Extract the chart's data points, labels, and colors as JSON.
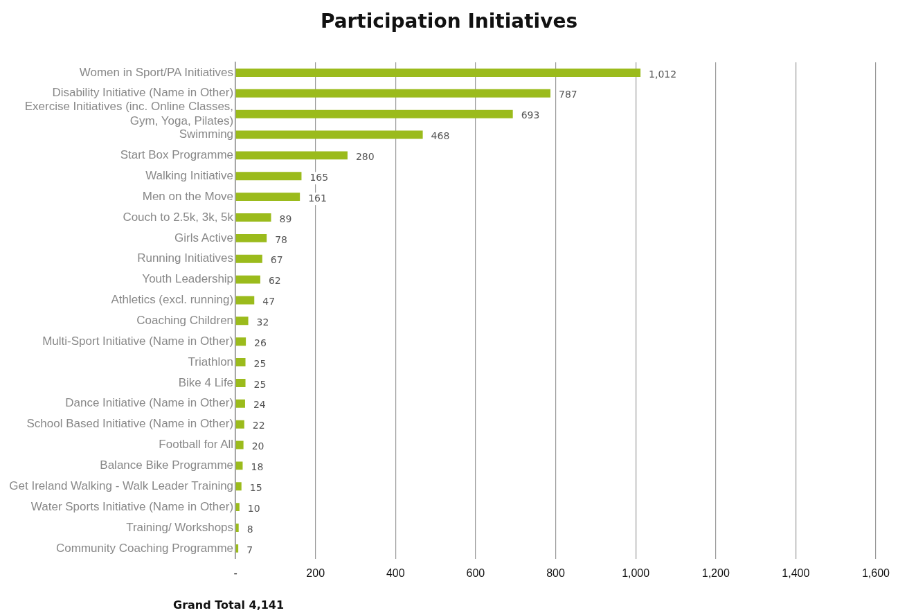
{
  "chart_data": {
    "type": "bar",
    "orientation": "horizontal",
    "title": "Participation Initiatives",
    "categories": [
      "Women in Sport/PA Initiatives",
      "Disability Initiative (Name in Other)",
      "Exercise Initiatives (inc. Online Classes, Gym, Yoga, Pilates)",
      "Swimming",
      "Start Box Programme",
      "Walking Initiative",
      "Men on the Move",
      "Couch to 2.5k, 3k, 5k",
      "Girls Active",
      "Running Initiatives",
      "Youth Leadership",
      "Athletics (excl. running)",
      "Coaching Children",
      "Multi-Sport Initiative (Name in Other)",
      "Triathlon",
      "Bike 4 Life",
      "Dance Initiative (Name in Other)",
      "School Based Initiative (Name in Other)",
      "Football for All",
      "Balance Bike Programme",
      "Get Ireland Walking - Walk Leader Training",
      "Water Sports Initiative (Name in Other)",
      "Training/ Workshops",
      "Community Coaching Programme"
    ],
    "values": [
      1012,
      787,
      693,
      468,
      280,
      165,
      161,
      89,
      78,
      67,
      62,
      47,
      32,
      26,
      25,
      25,
      24,
      22,
      20,
      18,
      15,
      10,
      8,
      7
    ],
    "value_labels": [
      "1,012",
      "787",
      "693",
      "468",
      "280",
      "165",
      "161",
      "89",
      "78",
      "67",
      "62",
      "47",
      "32",
      "26",
      "25",
      "25",
      "24",
      "22",
      "20",
      "18",
      "15",
      "10",
      "8",
      "7"
    ],
    "color": "#9bbb1c",
    "xlim": [
      0,
      1600
    ],
    "xticks": [
      {
        "value": 0,
        "label": "-"
      },
      200,
      400,
      600,
      800,
      {
        "value": 1000,
        "label": "1,000"
      },
      {
        "value": 1200,
        "label": "1,200"
      },
      {
        "value": 1400,
        "label": "1,400"
      },
      {
        "value": 1600,
        "label": "1,600"
      }
    ],
    "grid": "x",
    "legend": false,
    "annotations": [
      "Grand Total 4,141"
    ]
  }
}
